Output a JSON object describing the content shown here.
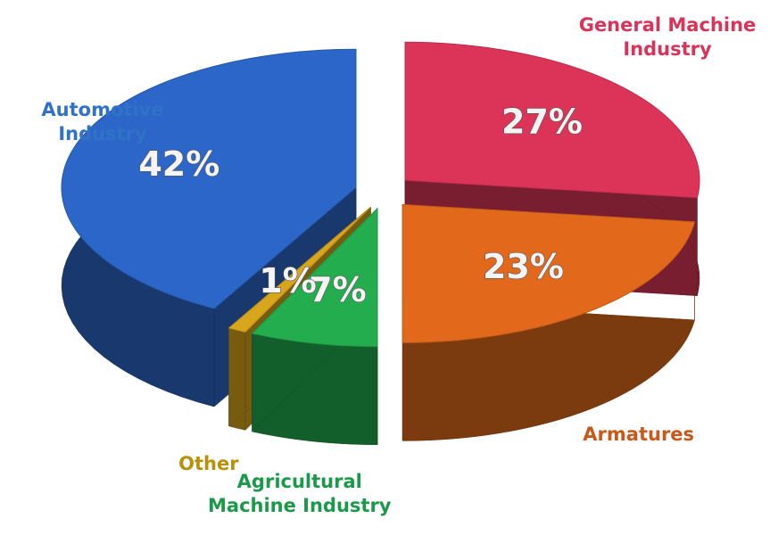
{
  "chart_data": {
    "type": "pie",
    "categories": [
      "General Machine Industry",
      "Armatures",
      "Agricultural Machine Industry",
      "Other",
      "Automotive Industry"
    ],
    "values": [
      27,
      23,
      7,
      1,
      42
    ],
    "value_labels": [
      "27%",
      "23%",
      "7%",
      "1%",
      "42%"
    ],
    "colors": [
      "#dc3458",
      "#e2691c",
      "#23ad4e",
      "#d8a61c",
      "#2c66c8"
    ],
    "label_colors": [
      "#d8345a",
      "#c9581a",
      "#1a9a48",
      "#b8900a",
      "#2f72c8"
    ]
  }
}
